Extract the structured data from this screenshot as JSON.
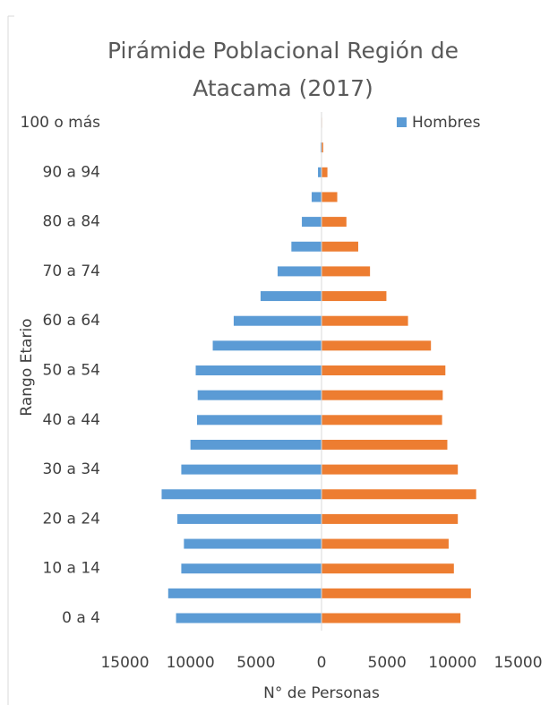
{
  "chart_data": {
    "type": "bar",
    "orientation": "horizontal",
    "title": "Pirámide Poblacional Región de Atacama (2017)",
    "x_label": "N° de Personas",
    "y_label": "Rango Etario",
    "categories": [
      "0 a 4",
      null,
      "10 a 14",
      null,
      "20 a 24",
      null,
      "30 a 34",
      null,
      "40 a 44",
      null,
      "50 a 54",
      null,
      "60 a 64",
      null,
      "70 a 74",
      null,
      "80 a 84",
      null,
      "90 a 94",
      null,
      "100 o más"
    ],
    "series": [
      {
        "name": "Hombres",
        "color": "#5b9bd5",
        "values": [
          -11100,
          -11700,
          -10700,
          -10500,
          -11000,
          -12200,
          -10700,
          -10000,
          -9500,
          -9450,
          -9600,
          -8300,
          -6700,
          -4650,
          -3350,
          -2300,
          -1500,
          -750,
          -270,
          -70,
          -10
        ]
      },
      {
        "color": "#ed7d31",
        "values": [
          10600,
          11400,
          10100,
          9700,
          10400,
          11800,
          10400,
          9600,
          9200,
          9250,
          9450,
          8350,
          6600,
          4950,
          3700,
          2800,
          1900,
          1200,
          450,
          130,
          40
        ]
      }
    ],
    "xlim": [
      -15000,
      15000
    ],
    "xticks": [
      {
        "value": -15000,
        "label": "15000"
      },
      {
        "value": -10000,
        "label": "10000"
      },
      {
        "value": -5000,
        "label": "5000"
      },
      0,
      5000,
      10000,
      15000
    ],
    "legend": "top-right",
    "grid": false
  }
}
